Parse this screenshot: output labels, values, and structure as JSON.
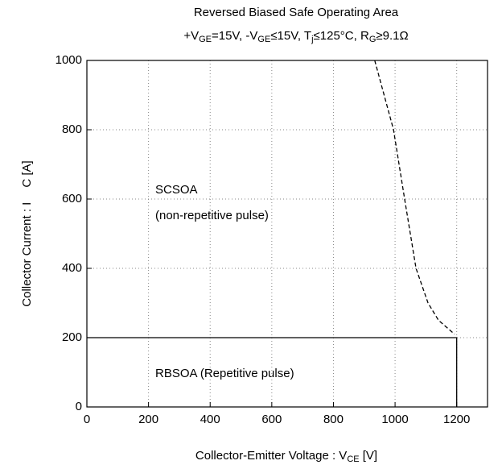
{
  "chart_data": {
    "type": "line",
    "title": "Reversed Biased Safe Operating Area",
    "subtitle": [
      "+V",
      "GE",
      "=15V, -V",
      "GE",
      "≤15V, T",
      "j",
      "≤125°C, R",
      "G",
      "≥9.1Ω"
    ],
    "x_label": [
      "Collector-Emitter Voltage : V",
      "CE",
      " [V]"
    ],
    "y_label": [
      "Collector Current : I",
      "C",
      " [A]"
    ],
    "annotations": [
      "SCSOA",
      "(non-repetitive pulse)",
      "RBSOA (Repetitive pulse)"
    ],
    "xlim": [
      0,
      1300
    ],
    "xticks": [
      0,
      200,
      400,
      600,
      800,
      1000,
      1200
    ],
    "ylim": [
      0,
      1000
    ],
    "yticks": [
      0,
      200,
      400,
      600,
      800,
      1000
    ],
    "grid": true,
    "series": [
      {
        "color": "#000000",
        "style": "solid",
        "x": [
          0,
          1200,
          1200
        ],
        "values": [
          200,
          200,
          0
        ]
      },
      {
        "color": "#000000",
        "style": "dashed",
        "x": [
          934,
          995,
          1031,
          1068,
          1107,
          1141,
          1193
        ],
        "values": [
          1000,
          800,
          600,
          400,
          300,
          250,
          210
        ]
      }
    ]
  }
}
